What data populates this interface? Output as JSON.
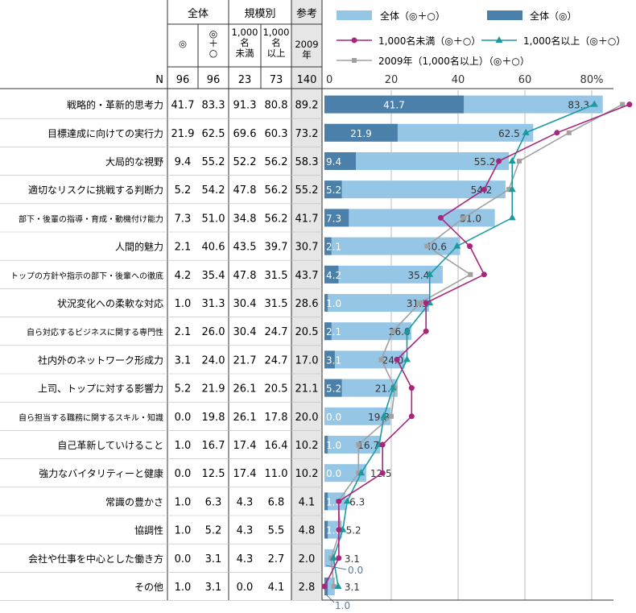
{
  "chart_data": {
    "type": "bar",
    "table_headers": {
      "group_all": "全体",
      "group_size": "規模別",
      "group_ref": "参考",
      "cols": [
        [
          "◎"
        ],
        [
          "◎",
          "＋",
          "○"
        ],
        [
          "1,000",
          "名",
          "未満"
        ],
        [
          "1,000",
          "名",
          "以上"
        ],
        [
          "2009",
          "年"
        ]
      ],
      "n_label": "N",
      "n": [
        "96",
        "96",
        "23",
        "73",
        "140"
      ]
    },
    "categories": [
      "戦略的・革新的思考力",
      "目標達成に向けての実行力",
      "大局的な視野",
      "適切なリスクに挑戦する判断力",
      "部下・後輩の指導・育成・動機付け能力",
      "人間的魅力",
      "トップの方針や指示の部下・後輩への徹底",
      "状況変化への柔軟な対応",
      "自ら対応するビジネスに関する専門性",
      "社内外のネットワーク形成力",
      "上司、トップに対する影響力",
      "自ら担当する職務に関するスキル・知識",
      "自己革新していけること",
      "強力なバイタリティーと健康",
      "常識の豊かさ",
      "協調性",
      "会社や仕事を中心とした働き方",
      "その他"
    ],
    "series": [
      {
        "name": "全体（◎）",
        "color": "#4a80aa",
        "values": [
          41.7,
          21.9,
          9.4,
          5.2,
          7.3,
          2.1,
          4.2,
          1.0,
          2.1,
          3.1,
          5.2,
          0.0,
          1.0,
          0.0,
          1.0,
          1.0,
          0.0,
          1.0
        ]
      },
      {
        "name": "全体（◎＋○）",
        "color": "#96c6e5",
        "values": [
          83.3,
          62.5,
          55.2,
          54.2,
          51.0,
          40.6,
          35.4,
          31.3,
          26.0,
          24.0,
          21.9,
          19.8,
          16.7,
          12.5,
          6.3,
          5.2,
          3.1,
          3.1
        ]
      },
      {
        "name": "1,000名未満（◎＋○）",
        "color": "#a8257e",
        "values": [
          91.3,
          69.6,
          52.2,
          47.8,
          34.8,
          43.5,
          47.8,
          30.4,
          30.4,
          21.7,
          26.1,
          26.1,
          17.4,
          17.4,
          4.3,
          4.3,
          4.3,
          0.0
        ]
      },
      {
        "name": "1,000名以上（◎＋○）",
        "color": "#1a9aa0",
        "values": [
          80.8,
          60.3,
          56.2,
          56.2,
          56.2,
          39.7,
          31.5,
          31.5,
          24.7,
          24.7,
          20.5,
          17.8,
          16.4,
          11.0,
          6.8,
          5.5,
          2.7,
          4.1
        ]
      },
      {
        "name": "2009年（1,000名以上）（◎＋○）",
        "color": "#a0a0a0",
        "values": [
          89.2,
          73.2,
          58.3,
          55.2,
          41.7,
          30.7,
          43.7,
          28.6,
          20.5,
          17.0,
          21.1,
          20.0,
          10.2,
          10.2,
          4.1,
          4.8,
          2.0,
          2.8
        ]
      }
    ],
    "xticks": [
      "0",
      "20",
      "40",
      "60",
      "80%"
    ],
    "xlim": [
      0,
      88
    ],
    "legend_position": "top-right",
    "leader_labels": {
      "dark_zero_row16": "0.0",
      "dark_row17": "1.0"
    }
  }
}
